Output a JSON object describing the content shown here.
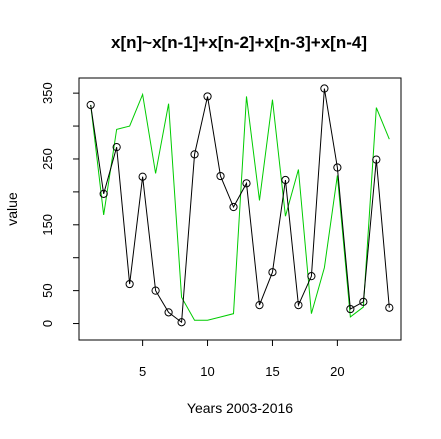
{
  "chart_data": {
    "type": "line",
    "title": "x[n]~x[n-1]+x[n-2]+x[n-3]+x[n-4]",
    "xlabel": "Years 2003-2016",
    "ylabel": "value",
    "xlim": [
      0.1,
      24.9
    ],
    "ylim": [
      -25,
      373
    ],
    "x_ticks": [
      5,
      10,
      15,
      20
    ],
    "y_ticks": [
      0,
      50,
      150,
      250,
      350
    ],
    "y_minor_ticks": [
      100,
      200,
      300
    ],
    "grid": false,
    "legend": "none",
    "x": [
      1,
      2,
      3,
      4,
      5,
      6,
      7,
      8,
      9,
      10,
      11,
      12,
      13,
      14,
      15,
      16,
      17,
      18,
      19,
      20,
      21,
      22,
      23,
      24
    ],
    "series": [
      {
        "color": "#000000",
        "markers": "open-circle",
        "values": [
          332,
          197,
          268,
          60,
          223,
          50,
          17,
          2,
          257,
          345,
          224,
          177,
          213,
          28,
          78,
          218,
          28,
          72,
          357,
          237,
          22,
          33,
          249,
          24
        ]
      },
      {
        "color": "#00cc00",
        "markers": "none",
        "values": [
          332,
          165,
          295,
          300,
          348,
          228,
          334,
          40,
          5,
          5,
          10,
          15,
          345,
          187,
          340,
          163,
          234,
          15,
          85,
          225,
          10,
          25,
          328,
          280
        ]
      }
    ]
  }
}
